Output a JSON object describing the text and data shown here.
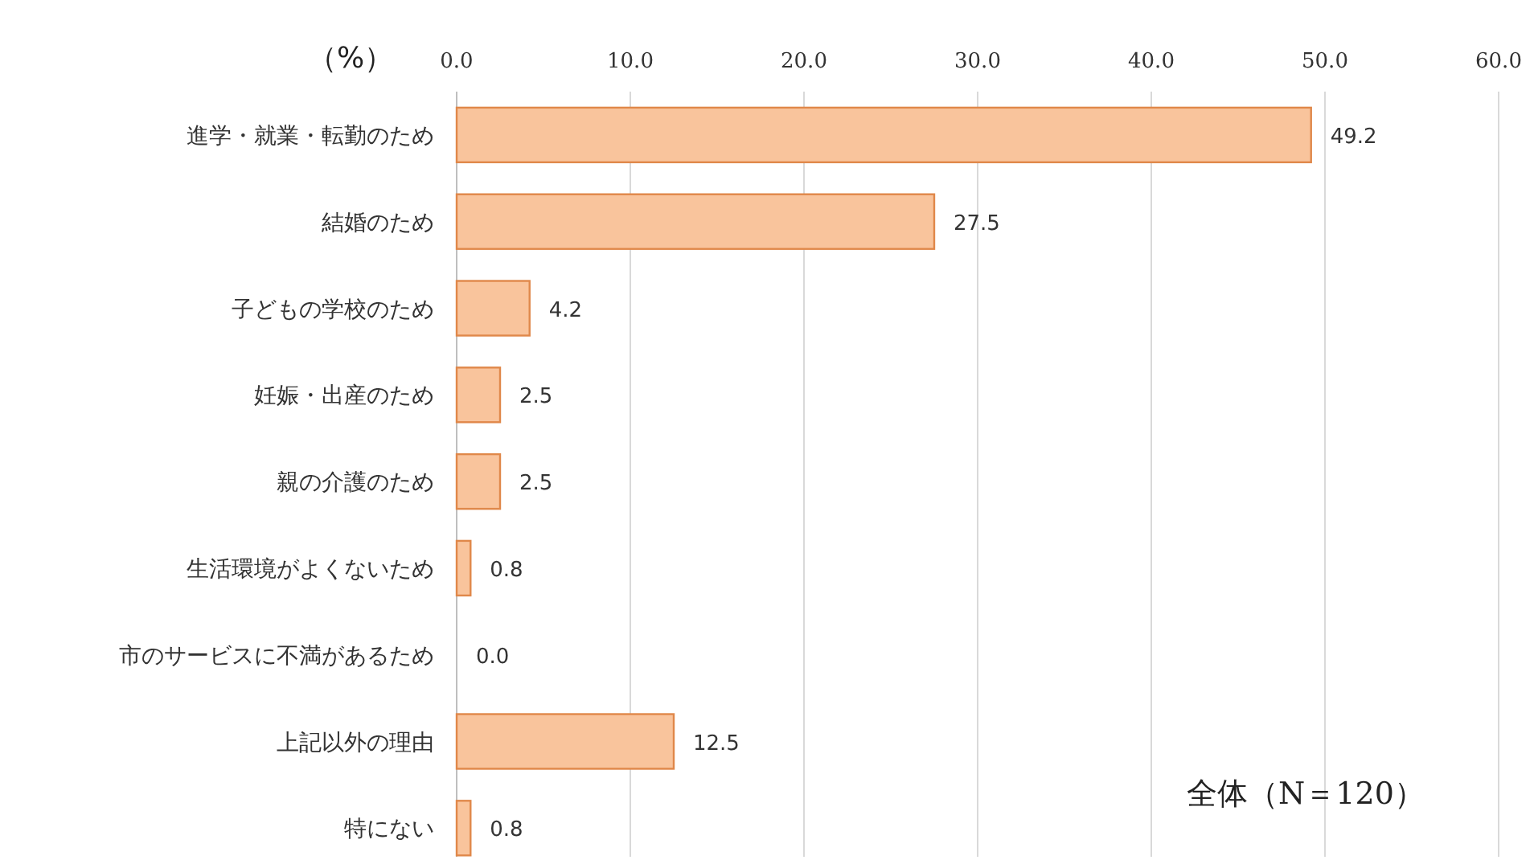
{
  "chart_data": {
    "type": "bar",
    "orientation": "horizontal",
    "xlabel": "（%）",
    "categories": [
      "進学・就業・転勤のため",
      "結婚のため",
      "子どもの学校のため",
      "妊娠・出産のため",
      "親の介護のため",
      "生活環境がよくないため",
      "市のサービスに不満があるため",
      "上記以外の理由",
      "特にない"
    ],
    "values": [
      49.2,
      27.5,
      4.2,
      2.5,
      2.5,
      0.8,
      0.0,
      12.5,
      0.8
    ],
    "value_labels": [
      "49.2",
      "27.5",
      "4.2",
      "2.5",
      "2.5",
      "0.8",
      "0.0",
      "12.5",
      "0.8"
    ],
    "color": "#f9c49c",
    "xlim": [
      0,
      60
    ],
    "xticks": [
      {
        "value": 0,
        "label": "0.0"
      },
      {
        "value": 10,
        "label": "10.0"
      },
      {
        "value": 20,
        "label": "20.0"
      },
      {
        "value": 30,
        "label": "30.0"
      },
      {
        "value": 40,
        "label": "40.0"
      },
      {
        "value": 50,
        "label": "50.0"
      },
      {
        "value": 60,
        "label": "60.0"
      }
    ],
    "grid": "x",
    "annotations": [
      "全体（N＝120）"
    ]
  }
}
